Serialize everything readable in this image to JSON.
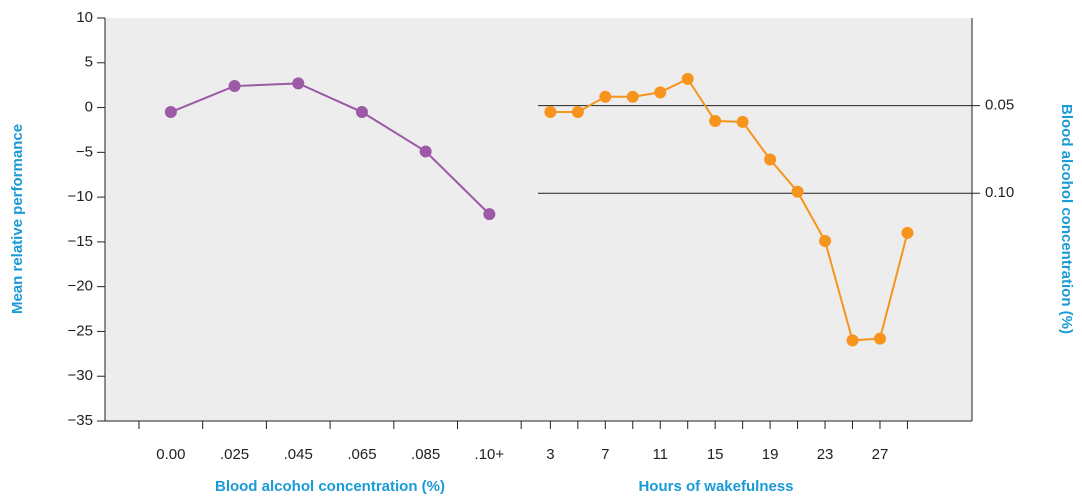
{
  "chart_data": {
    "type": "line",
    "ylabel": "Mean relative performance",
    "ylim": [
      -35,
      10
    ],
    "yticks": [
      10,
      5,
      0,
      {
        "value": -5,
        "label": "−5"
      },
      {
        "value": -10,
        "label": "−10"
      },
      {
        "value": -15,
        "label": "−15"
      },
      {
        "value": -20,
        "label": "−20"
      },
      {
        "value": -25,
        "label": "−25"
      },
      {
        "value": -30,
        "label": "−30"
      },
      {
        "value": -35,
        "label": "−35"
      }
    ],
    "y2label": "Blood alcohol concentration (%)",
    "y2lim": [
      0.23,
      0
    ],
    "y2ticks": [
      0.05,
      {
        "value": 0.1,
        "label": "0.10"
      }
    ],
    "panels": [
      {
        "xlabel": "Blood alcohol concentration (%)",
        "categories": [
          "0.00",
          ".025",
          ".045",
          ".065",
          ".085",
          ".10+"
        ],
        "values": [
          -0.5,
          2.4,
          2.7,
          -0.5,
          -4.9,
          -11.9
        ],
        "color": "#9b59a6"
      },
      {
        "xlabel": "Hours of wakefulness",
        "x": [
          3,
          5,
          7,
          9,
          11,
          13,
          15,
          17,
          19,
          21,
          23,
          25,
          27,
          29
        ],
        "values": [
          -0.5,
          -0.5,
          1.2,
          1.2,
          1.7,
          3.2,
          -1.5,
          -1.6,
          -5.8,
          -9.4,
          -14.9,
          -26,
          -25.8,
          -14
        ],
        "xlim": [
          2.1,
          33.7
        ],
        "xticks": [
          3,
          7,
          11,
          15,
          19,
          23,
          27
        ],
        "xminor": [
          5,
          9,
          13,
          17,
          21,
          25,
          29
        ],
        "color": "#f7941d"
      }
    ]
  }
}
